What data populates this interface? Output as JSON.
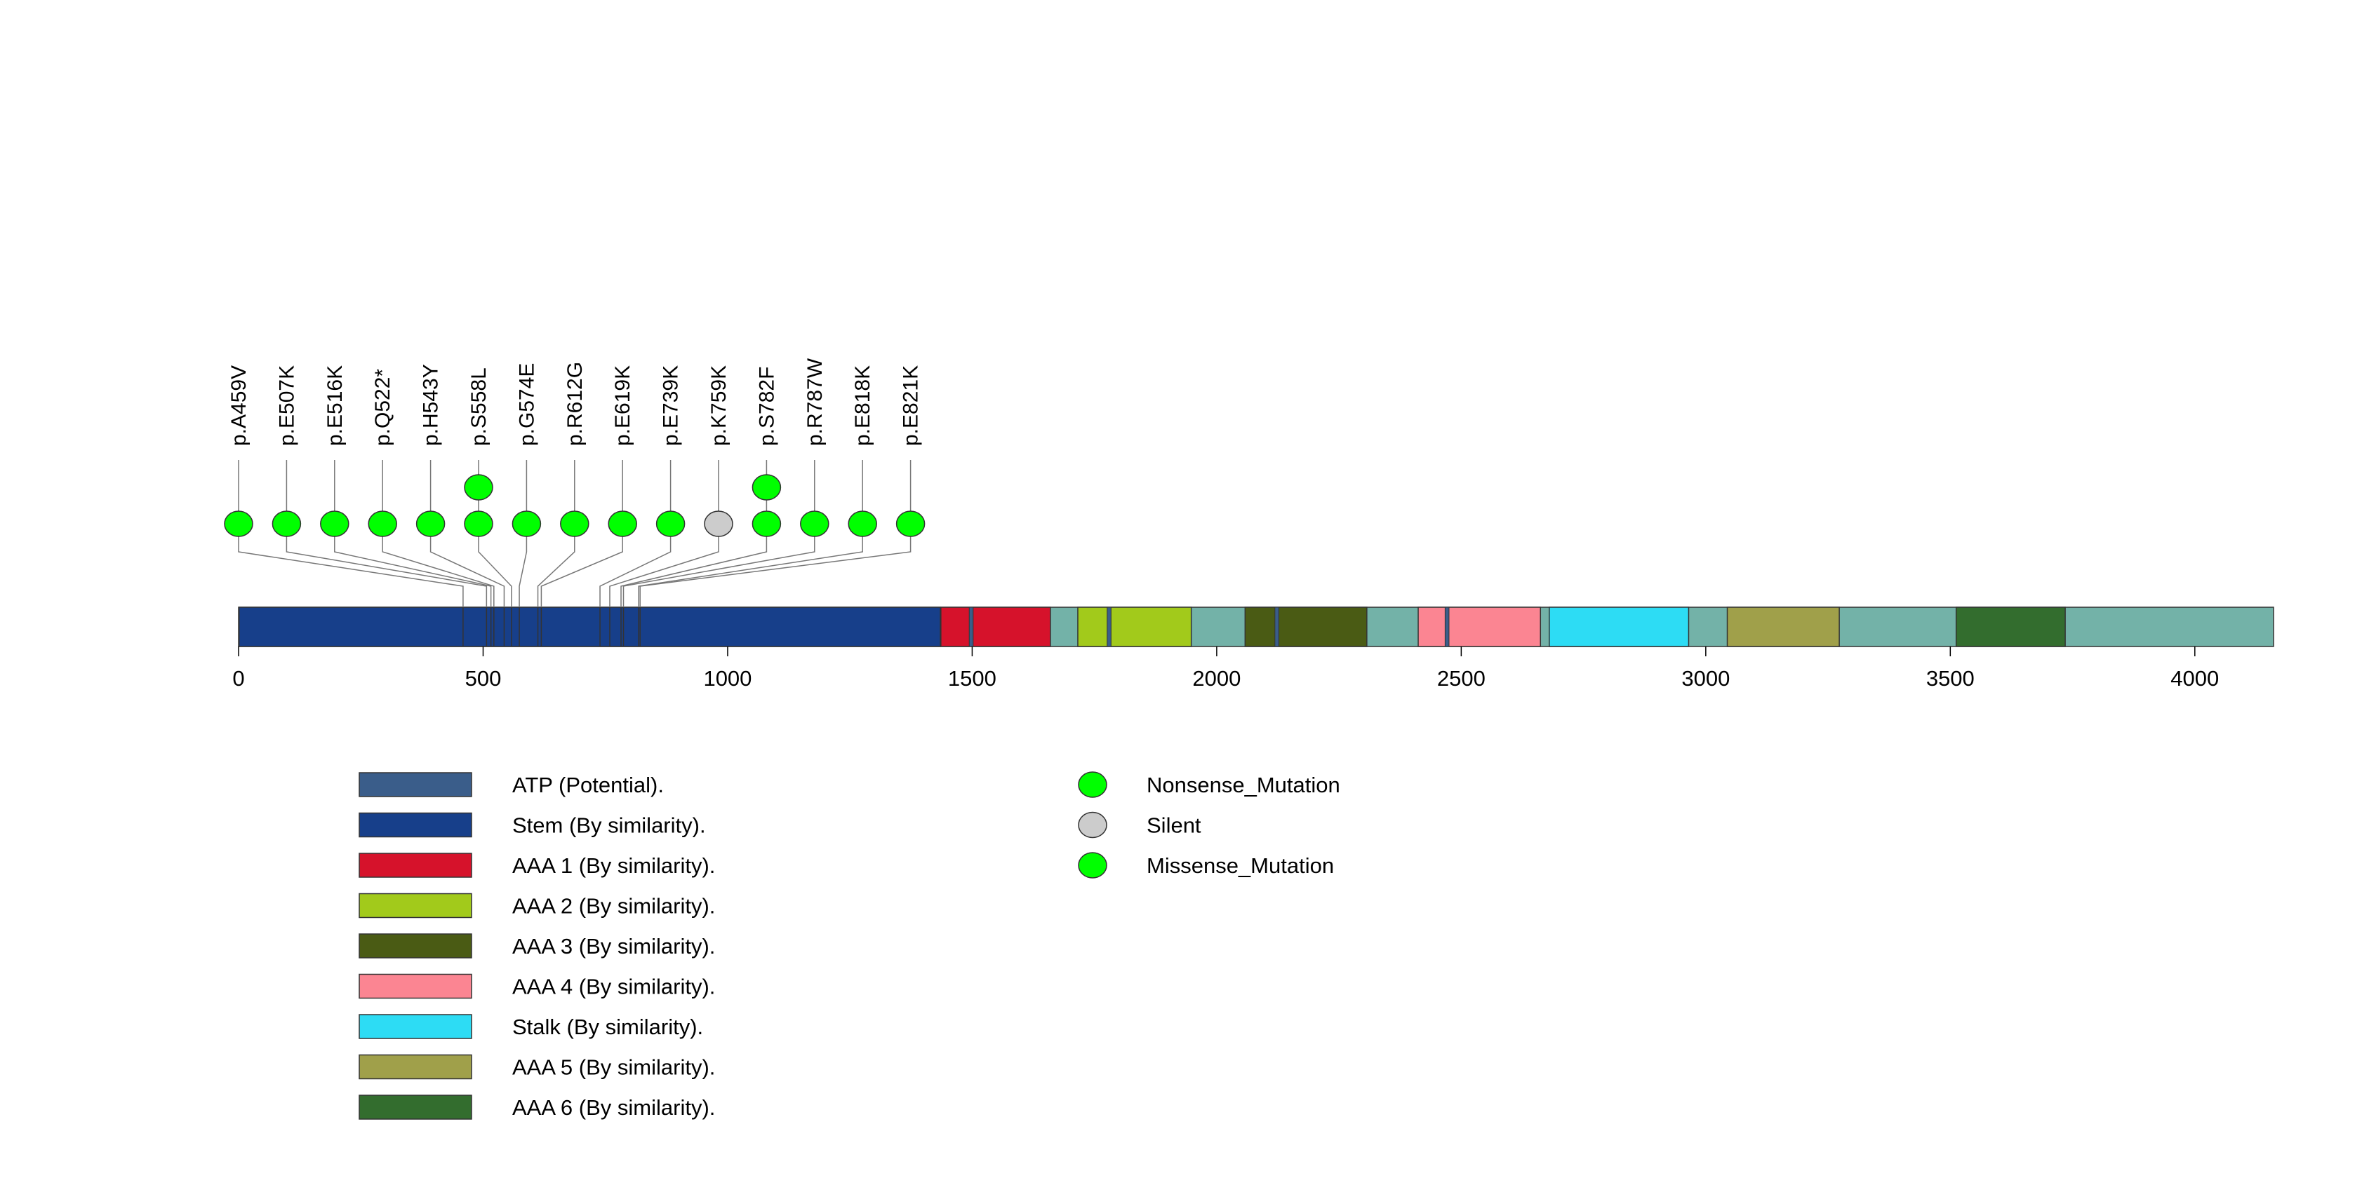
{
  "chart_data": {
    "type": "lollipop",
    "protein_length": 4161,
    "x_ticks": [
      0,
      500,
      1000,
      1500,
      2000,
      2500,
      3000,
      3500,
      4000
    ],
    "domains": [
      {
        "name": "Stem (By similarity).",
        "start": 1,
        "end": 1435,
        "color": "#173f8a"
      },
      {
        "name": "AAA 1 (By similarity).",
        "start": 1436,
        "end": 1660,
        "color": "#d6122b"
      },
      {
        "name": "AAA 2 (By similarity).",
        "start": 1716,
        "end": 1948,
        "color": "#a2ca1b"
      },
      {
        "name": "AAA 3 (By similarity).",
        "start": 2058,
        "end": 2307,
        "color": "#4a5b14"
      },
      {
        "name": "AAA 4 (By similarity).",
        "start": 2412,
        "end": 2662,
        "color": "#fb8592"
      },
      {
        "name": "Stalk (By similarity).",
        "start": 2680,
        "end": 2965,
        "color": "#2ddcf4"
      },
      {
        "name": "AAA 5 (By similarity).",
        "start": 3044,
        "end": 3273,
        "color": "#a0a04a"
      },
      {
        "name": "AAA 6 (By similarity).",
        "start": 3512,
        "end": 3735,
        "color": "#336d2e"
      }
    ],
    "atp_sites": [
      1494,
      1776,
      2119,
      2467
    ],
    "mutations": [
      {
        "label": "p.A459V",
        "pos": 459,
        "type": "Missense_Mutation",
        "count": 1
      },
      {
        "label": "p.E507K",
        "pos": 507,
        "type": "Missense_Mutation",
        "count": 1
      },
      {
        "label": "p.E516K",
        "pos": 516,
        "type": "Missense_Mutation",
        "count": 1
      },
      {
        "label": "p.Q522*",
        "pos": 522,
        "type": "Nonsense_Mutation",
        "count": 1
      },
      {
        "label": "p.H543Y",
        "pos": 543,
        "type": "Missense_Mutation",
        "count": 1
      },
      {
        "label": "p.S558L",
        "pos": 558,
        "type": "Missense_Mutation",
        "count": 2
      },
      {
        "label": "p.G574E",
        "pos": 574,
        "type": "Missense_Mutation",
        "count": 1
      },
      {
        "label": "p.R612G",
        "pos": 612,
        "type": "Missense_Mutation",
        "count": 1
      },
      {
        "label": "p.E619K",
        "pos": 619,
        "type": "Missense_Mutation",
        "count": 1
      },
      {
        "label": "p.E739K",
        "pos": 739,
        "type": "Missense_Mutation",
        "count": 1
      },
      {
        "label": "p.K759K",
        "pos": 759,
        "type": "Silent",
        "count": 1
      },
      {
        "label": "p.S782F",
        "pos": 782,
        "type": "Missense_Mutation",
        "count": 2
      },
      {
        "label": "p.R787W",
        "pos": 787,
        "type": "Missense_Mutation",
        "count": 1
      },
      {
        "label": "p.E818K",
        "pos": 818,
        "type": "Missense_Mutation",
        "count": 1
      },
      {
        "label": "p.E821K",
        "pos": 821,
        "type": "Missense_Mutation",
        "count": 1
      }
    ],
    "legend_domains": [
      {
        "name": "ATP (Potential).",
        "color": "#3a5d8a"
      },
      {
        "name": "Stem (By similarity).",
        "color": "#173f8a"
      },
      {
        "name": "AAA 1 (By similarity).",
        "color": "#d6122b"
      },
      {
        "name": "AAA 2 (By similarity).",
        "color": "#a2ca1b"
      },
      {
        "name": "AAA 3 (By similarity).",
        "color": "#4a5b14"
      },
      {
        "name": "AAA 4 (By similarity).",
        "color": "#fb8592"
      },
      {
        "name": "Stalk (By similarity).",
        "color": "#2ddcf4"
      },
      {
        "name": "AAA 5 (By similarity).",
        "color": "#a0a04a"
      },
      {
        "name": "AAA 6 (By similarity).",
        "color": "#336d2e"
      }
    ],
    "legend_mutations": [
      {
        "name": "Nonsense_Mutation",
        "color": "#00ff00"
      },
      {
        "name": "Silent",
        "color": "#cccccc"
      },
      {
        "name": "Missense_Mutation",
        "color": "#00ff00"
      }
    ],
    "backbone_color": "#73b2a8"
  }
}
